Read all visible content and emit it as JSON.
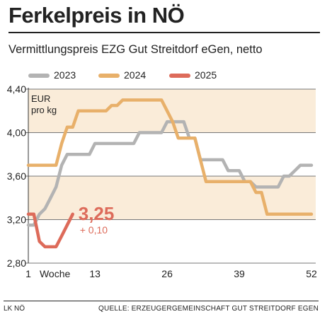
{
  "header": {
    "title": "Ferkelpreis in NÖ",
    "subtitle": "Vermittlungspreis EZG Gut Streitdorf eGen, netto"
  },
  "chart_data": {
    "type": "line",
    "unit_label": [
      "EUR",
      "pro kg"
    ],
    "xlabel": "Woche",
    "x_ticks": [
      1,
      13,
      26,
      39,
      52
    ],
    "y_ticks": [
      "2,80",
      "3,20",
      "3,60",
      "4,00",
      "4,40"
    ],
    "y_tick_values": [
      2.8,
      3.2,
      3.6,
      4.0,
      4.4
    ],
    "xlim": [
      1,
      52
    ],
    "ylim": [
      2.8,
      4.4
    ],
    "legend_position": "top",
    "series": [
      {
        "name": "2023",
        "color": "#b3b3b3",
        "x": [
          1,
          2,
          3,
          4,
          5,
          6,
          7,
          8,
          9,
          10,
          11,
          12,
          13,
          14,
          15,
          16,
          17,
          18,
          19,
          20,
          21,
          22,
          23,
          24,
          25,
          26,
          27,
          28,
          29,
          30,
          31,
          32,
          33,
          34,
          35,
          36,
          37,
          38,
          39,
          40,
          41,
          42,
          43,
          44,
          45,
          46,
          47,
          48,
          49,
          50,
          51,
          52
        ],
        "values": [
          3.15,
          3.15,
          3.25,
          3.3,
          3.4,
          3.5,
          3.7,
          3.8,
          3.8,
          3.8,
          3.8,
          3.8,
          3.9,
          3.9,
          3.9,
          3.9,
          3.9,
          3.9,
          3.9,
          3.9,
          4.0,
          4.0,
          4.0,
          4.0,
          4.0,
          4.1,
          4.1,
          4.1,
          4.1,
          3.95,
          3.95,
          3.75,
          3.75,
          3.75,
          3.75,
          3.75,
          3.65,
          3.65,
          3.65,
          3.55,
          3.55,
          3.5,
          3.5,
          3.5,
          3.5,
          3.5,
          3.6,
          3.6,
          3.65,
          3.7,
          3.7,
          3.7
        ]
      },
      {
        "name": "2024",
        "color": "#e8b06a",
        "x": [
          1,
          2,
          3,
          4,
          5,
          6,
          7,
          8,
          9,
          10,
          11,
          12,
          13,
          14,
          15,
          16,
          17,
          18,
          19,
          20,
          21,
          22,
          23,
          24,
          25,
          26,
          27,
          28,
          29,
          30,
          31,
          32,
          33,
          34,
          35,
          36,
          37,
          38,
          39,
          40,
          41,
          42,
          43,
          44,
          45,
          46,
          47,
          48,
          49,
          50,
          51,
          52
        ],
        "values": [
          3.7,
          3.7,
          3.7,
          3.7,
          3.7,
          3.7,
          3.9,
          4.05,
          4.05,
          4.2,
          4.2,
          4.2,
          4.2,
          4.2,
          4.2,
          4.25,
          4.25,
          4.3,
          4.3,
          4.3,
          4.3,
          4.3,
          4.3,
          4.3,
          4.3,
          4.2,
          4.1,
          3.95,
          3.95,
          3.95,
          3.95,
          3.75,
          3.55,
          3.55,
          3.55,
          3.55,
          3.55,
          3.55,
          3.55,
          3.55,
          3.55,
          3.45,
          3.45,
          3.25,
          3.25,
          3.25,
          3.25,
          3.25,
          3.25,
          3.25,
          3.25,
          3.25
        ]
      },
      {
        "name": "2025",
        "color": "#dd6b5a",
        "x": [
          1,
          2,
          3,
          4,
          5,
          6,
          7,
          8,
          9
        ],
        "values": [
          3.25,
          3.25,
          3.0,
          2.95,
          2.95,
          2.95,
          3.05,
          3.15,
          3.25
        ]
      }
    ],
    "annotation": {
      "value": "3,25",
      "change": "+ 0,10"
    }
  },
  "footer": {
    "left": "LK NÖ",
    "right": "QUELLE: ERZEUGERGEMEINSCHAFT GUT STREITDORF EGEN"
  }
}
